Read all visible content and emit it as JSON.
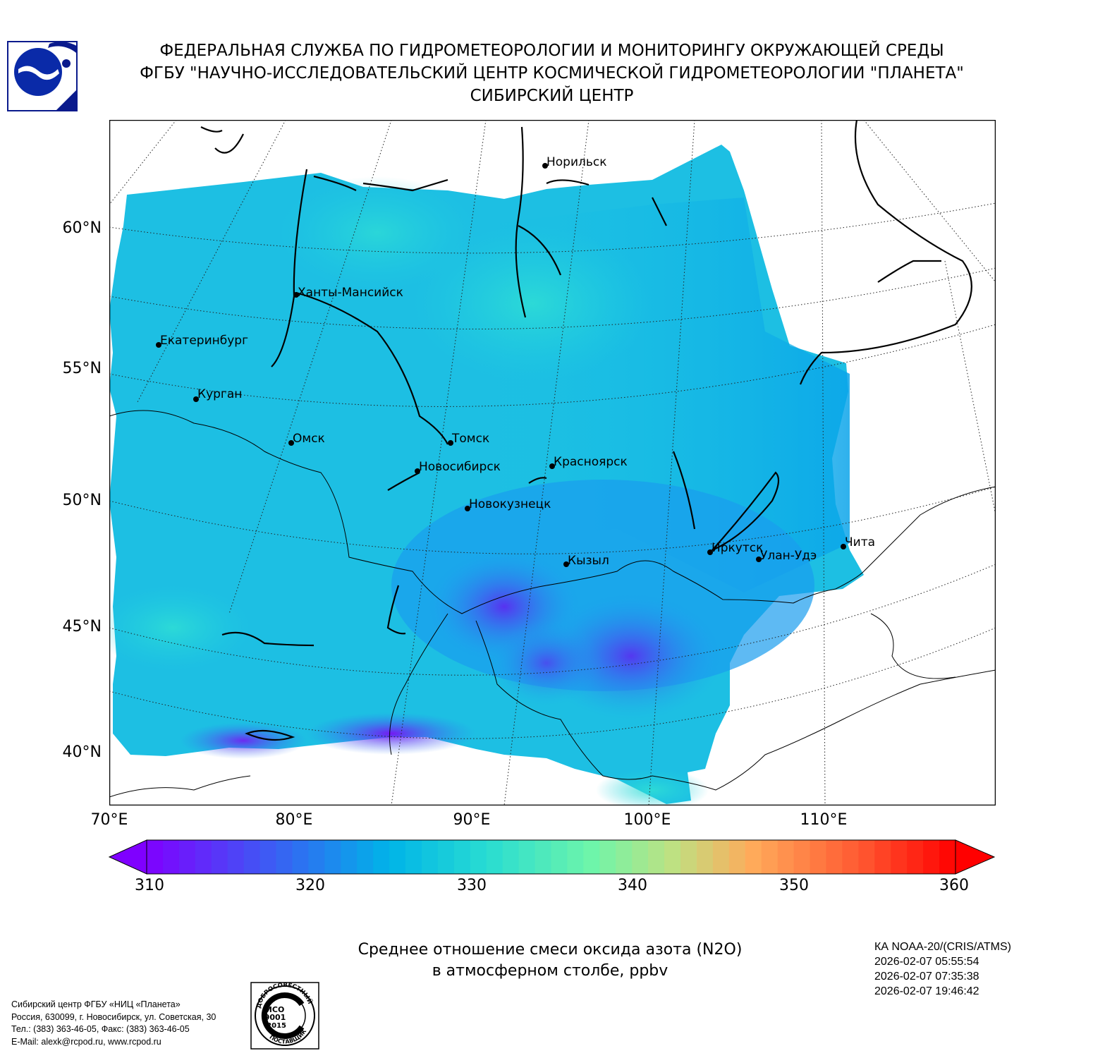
{
  "header": {
    "line1": "ФЕДЕРАЛЬНАЯ СЛУЖБА ПО ГИДРОМЕТЕОРОЛОГИИ И МОНИТОРИНГУ ОКРУЖАЮЩЕЙ СРЕДЫ",
    "line2": "ФГБУ \"НАУЧНО-ИССЛЕДОВАТЕЛЬСКИЙ ЦЕНТР КОСМИЧЕСКОЙ ГИДРОМЕТЕОРОЛОГИИ \"ПЛАНЕТА\"",
    "line3": "СИБИРСКИЙ ЦЕНТР"
  },
  "map": {
    "lat_labels": [
      "60°N",
      "55°N",
      "50°N",
      "45°N",
      "40°N"
    ],
    "lon_labels": [
      "70°E",
      "80°E",
      "90°E",
      "100°E",
      "110°E"
    ],
    "cities": [
      "Норильск",
      "Ханты-Мансийск",
      "Екатеринбург",
      "Курган",
      "Омск",
      "Томск",
      "Новосибирск",
      "Красноярск",
      "Новокузнецк",
      "Иркутск",
      "Улан-Удэ",
      "Чита",
      "Кызыл"
    ],
    "colors": {
      "low": "#7f00ff",
      "mid": "#00b4e8",
      "high": "#ff0000"
    }
  },
  "colorbar": {
    "min": 310,
    "max": 360,
    "ticks": [
      "310",
      "320",
      "330",
      "340",
      "350",
      "360"
    ]
  },
  "caption": {
    "line1": "Среднее отношение смеси оксида азота (N2O)",
    "line2": "в атмосферном столбе, ppbv"
  },
  "satellite": {
    "name": "КА NOAA-20/(CRIS/ATMS)",
    "times": [
      "2026-02-07 05:55:54",
      "2026-02-07 07:35:38",
      "2026-02-07 19:46:42"
    ]
  },
  "org": {
    "line1": "Сибирский центр ФГБУ «НИЦ «Планета»",
    "line2": "Россия, 630099, г. Новосибирск, ул. Советская, 30",
    "line3": "Тел.: (383) 363-46-05, Факс: (383) 363-46-05",
    "line4": "E-Mail: alexk@rcpod.ru, www.rcpod.ru"
  },
  "iso_seal": {
    "top_text": "ДОБРОСОВЕСТНЫЙ",
    "center_line1": "ИСО",
    "center_line2": "9001",
    "center_line3": "-2015",
    "bottom_text": "ПОСТАВЩИК"
  }
}
